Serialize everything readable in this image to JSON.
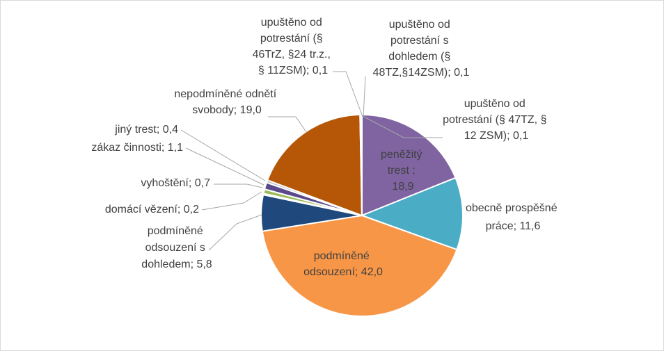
{
  "chart_data": {
    "type": "pie",
    "title": "",
    "legend": "none",
    "slices": [
      {
        "label": "peněžitý trest ;",
        "value": 18.9,
        "value_text": "18,9",
        "color": "#8064a2"
      },
      {
        "label": "obecně prospěšné práce",
        "value": 11.6,
        "value_text": "11,6",
        "color": "#4bacc6"
      },
      {
        "label": "podmíněné odsouzení",
        "value": 42.0,
        "value_text": "42,0",
        "color": "#f79646"
      },
      {
        "label": "podmíněné odsouzení s dohledem",
        "value": 5.8,
        "value_text": "5,8",
        "color": "#1f497d"
      },
      {
        "label": "domácí vězení",
        "value": 0.2,
        "value_text": "0,2",
        "color": "#c0504d"
      },
      {
        "label": "vyhoštění",
        "value": 0.7,
        "value_text": "0,7",
        "color": "#9bbb59"
      },
      {
        "label": "zákaz činnosti",
        "value": 1.1,
        "value_text": "1,1",
        "color": "#5b4a8b"
      },
      {
        "label": "jiný trest",
        "value": 0.4,
        "value_text": "0,4",
        "color": "#b7b7b7"
      },
      {
        "label": "nepodmíněné odnětí svobody",
        "value": 19.0,
        "value_text": "19,0",
        "color": "#b65708"
      },
      {
        "label": "upuštěno od potrestání (§ 46TrZ, §24 tr.z., § 11ZSM)",
        "value": 0.1,
        "value_text": "0,1",
        "color": "#2c4d75"
      },
      {
        "label": "upuštěno od potrestání s dohledem (§ 48TZ,§14ZSM)",
        "value": 0.1,
        "value_text": "0,1",
        "color": "#772c2a"
      },
      {
        "label": "upuštěno od potrestání (§ 47TZ, § 12 ZSM)",
        "value": 0.1,
        "value_text": "0,1",
        "color": "#5f7530"
      }
    ]
  },
  "labels": {
    "penezity": [
      "peněžitý",
      "trest ;",
      "18,9"
    ],
    "ops": [
      "obecně prospěšné",
      "práce; 11,6"
    ],
    "podminene": [
      "podmíněné",
      "odsouzení; 42,0"
    ],
    "dohled": [
      "podmíněné",
      "odsouzení  s",
      "dohledem; 5,8"
    ],
    "domaci": [
      "domácí vězení; 0,2"
    ],
    "vyhosteni": [
      "vyhoštění; 0,7"
    ],
    "zakaz": [
      "zákaz činnosti; 1,1"
    ],
    "jiny": [
      "jiný trest; 0,4"
    ],
    "nepodminene": [
      "nepodmíněné odnětí",
      "svobody; 19,0"
    ],
    "upusteno46": [
      "upuštěno od",
      "potrestání (§",
      "46TrZ, §24 tr.z.,",
      "§ 11ZSM); 0,1"
    ],
    "upusteno48": [
      "upuštěno od",
      "potrestání s",
      "dohledem (§",
      "48TZ,§14ZSM); 0,1"
    ],
    "upusteno47": [
      "upuštěno od",
      "potrestání (§ 47TZ, §",
      "12 ZSM); 0,1"
    ]
  }
}
